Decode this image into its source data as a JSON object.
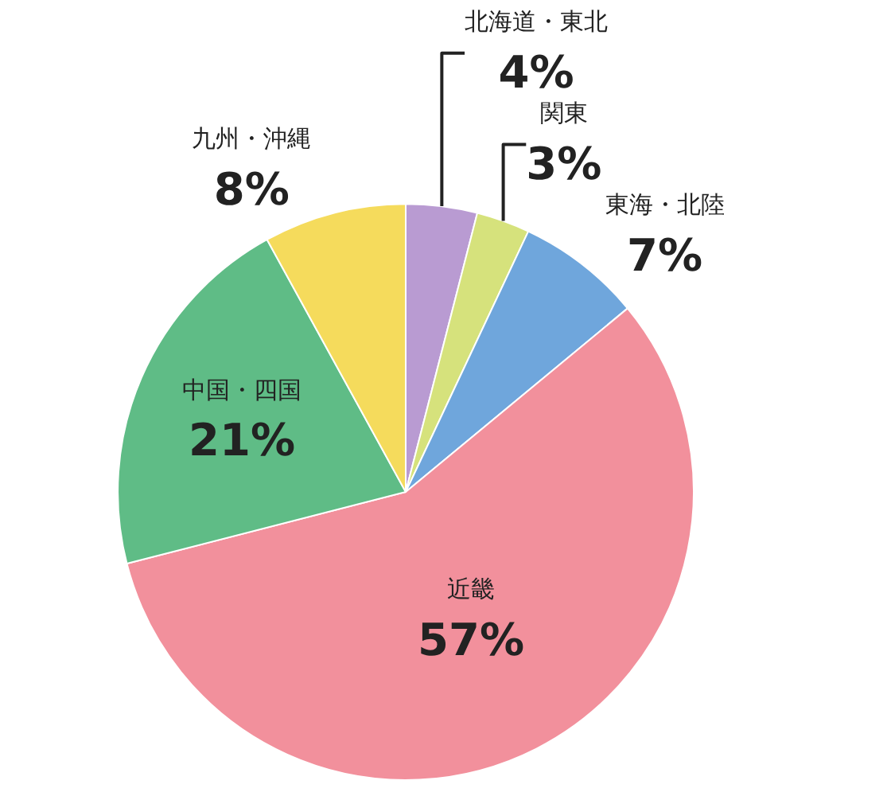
{
  "chart_data": {
    "type": "pie",
    "categories": [
      "北海道・東北",
      "関東",
      "東海・北陸",
      "近畿",
      "中国・四国",
      "九州・沖縄"
    ],
    "values": [
      4,
      3,
      7,
      57,
      21,
      8
    ],
    "value_labels": [
      "4%",
      "3%",
      "7%",
      "57%",
      "21%",
      "8%"
    ],
    "colors": [
      "#b99bd2",
      "#d6e27c",
      "#6fa6dc",
      "#f2909c",
      "#5fbc86",
      "#f5db5c"
    ],
    "legend": false
  }
}
